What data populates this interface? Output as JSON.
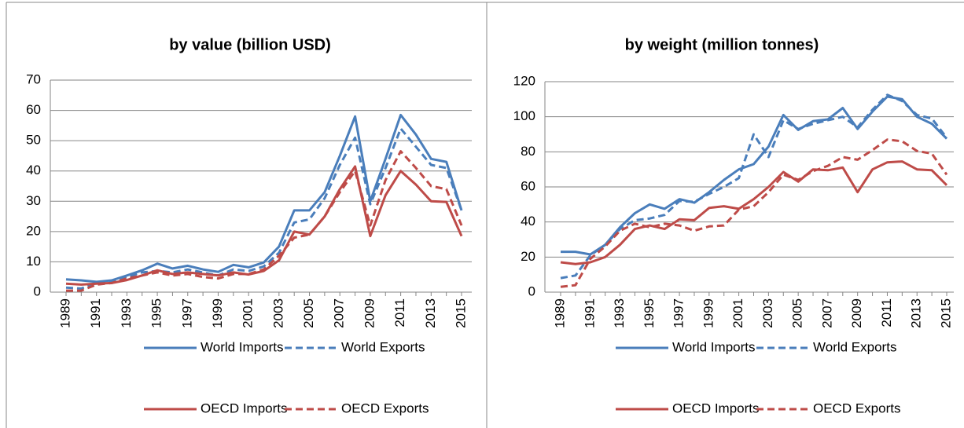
{
  "chart_data": [
    {
      "type": "line",
      "title": "by value (billion USD)",
      "categories": [
        "1989",
        null,
        "1991",
        null,
        "1993",
        null,
        "1995",
        null,
        "1997",
        null,
        "1999",
        null,
        "2001",
        null,
        "2003",
        null,
        "2005",
        null,
        "2007",
        null,
        "2009",
        null,
        "2011",
        null,
        "2013",
        null,
        "2015"
      ],
      "ylim": [
        0,
        70
      ],
      "yticks": [
        0,
        10,
        20,
        30,
        40,
        50,
        60,
        70
      ],
      "grid": true,
      "series": [
        {
          "name": "World Imports",
          "color": "#4a7ebb",
          "dash": false,
          "values": [
            4.2,
            3.9,
            3.4,
            3.9,
            5.5,
            7.2,
            9.4,
            7.8,
            8.7,
            7.5,
            6.7,
            9.0,
            8.2,
            9.8,
            15,
            27,
            27,
            33,
            45,
            58,
            30,
            44,
            58.5,
            52,
            44,
            43,
            27
          ]
        },
        {
          "name": "World Exports",
          "color": "#4a7ebb",
          "dash": true,
          "values": [
            1.5,
            1.2,
            3.0,
            3.5,
            5.0,
            6.5,
            7.0,
            6.5,
            7.5,
            6.5,
            5.5,
            7.5,
            7.0,
            8.5,
            13,
            23,
            24,
            31,
            42,
            51,
            29,
            41,
            54,
            48,
            42,
            41,
            27
          ]
        },
        {
          "name": "OECD Imports",
          "color": "#be4b48",
          "dash": false,
          "values": [
            2.8,
            2.5,
            2.8,
            3.0,
            4.0,
            5.5,
            7.2,
            6.0,
            6.5,
            6.0,
            5.5,
            6.5,
            5.8,
            7.0,
            10.5,
            20,
            19,
            25,
            34,
            41.5,
            18.5,
            32,
            40,
            35.5,
            30,
            29.8,
            18.5
          ]
        },
        {
          "name": "OECD Exports",
          "color": "#be4b48",
          "dash": true,
          "values": [
            0.5,
            0.5,
            2.5,
            3.0,
            4.5,
            5.5,
            6.5,
            5.5,
            6.0,
            5.0,
            4.5,
            6.0,
            6.0,
            7.5,
            12,
            18,
            19,
            25,
            33,
            40,
            22,
            37,
            46.5,
            41,
            35,
            34,
            22
          ]
        }
      ]
    },
    {
      "type": "line",
      "title": "by weight (million tonnes)",
      "categories": [
        "1989",
        null,
        "1991",
        null,
        "1993",
        null,
        "1995",
        null,
        "1997",
        null,
        "1999",
        null,
        "2001",
        null,
        "2003",
        null,
        "2005",
        null,
        "2007",
        null,
        "2009",
        null,
        "2011",
        null,
        "2013",
        null,
        "2015"
      ],
      "ylim": [
        0,
        120
      ],
      "yticks": [
        0,
        20,
        40,
        60,
        80,
        100,
        120
      ],
      "grid": true,
      "series": [
        {
          "name": "World Imports",
          "color": "#4a7ebb",
          "dash": false,
          "values": [
            23,
            23,
            21.5,
            27,
            37,
            45,
            50,
            47.5,
            53,
            51,
            57,
            64,
            70,
            73,
            83,
            101,
            92.5,
            97.5,
            98.5,
            105,
            93,
            103,
            111.5,
            110,
            100,
            96,
            87.5
          ]
        },
        {
          "name": "World Exports",
          "color": "#4a7ebb",
          "dash": true,
          "values": [
            8,
            9.5,
            21,
            27,
            36,
            41,
            42,
            44,
            52,
            51.5,
            56,
            60,
            65,
            90,
            77,
            98,
            93,
            96,
            98,
            100,
            94,
            104,
            112.5,
            109,
            101,
            99,
            88
          ]
        },
        {
          "name": "OECD Imports",
          "color": "#be4b48",
          "dash": false,
          "values": [
            17,
            16,
            17,
            20,
            27,
            36,
            38,
            36,
            41.5,
            41,
            48,
            49,
            47.5,
            53,
            60,
            68.5,
            63,
            70,
            69.5,
            71,
            57,
            70,
            74,
            74.5,
            70,
            69.5,
            61
          ]
        },
        {
          "name": "OECD Exports",
          "color": "#be4b48",
          "dash": true,
          "values": [
            3,
            4,
            19,
            26,
            35,
            39,
            37,
            39,
            38,
            35,
            37.5,
            38,
            47,
            49,
            57,
            67,
            64,
            69,
            72,
            77,
            75.5,
            81,
            87,
            86,
            80.5,
            79,
            67
          ]
        }
      ]
    }
  ]
}
